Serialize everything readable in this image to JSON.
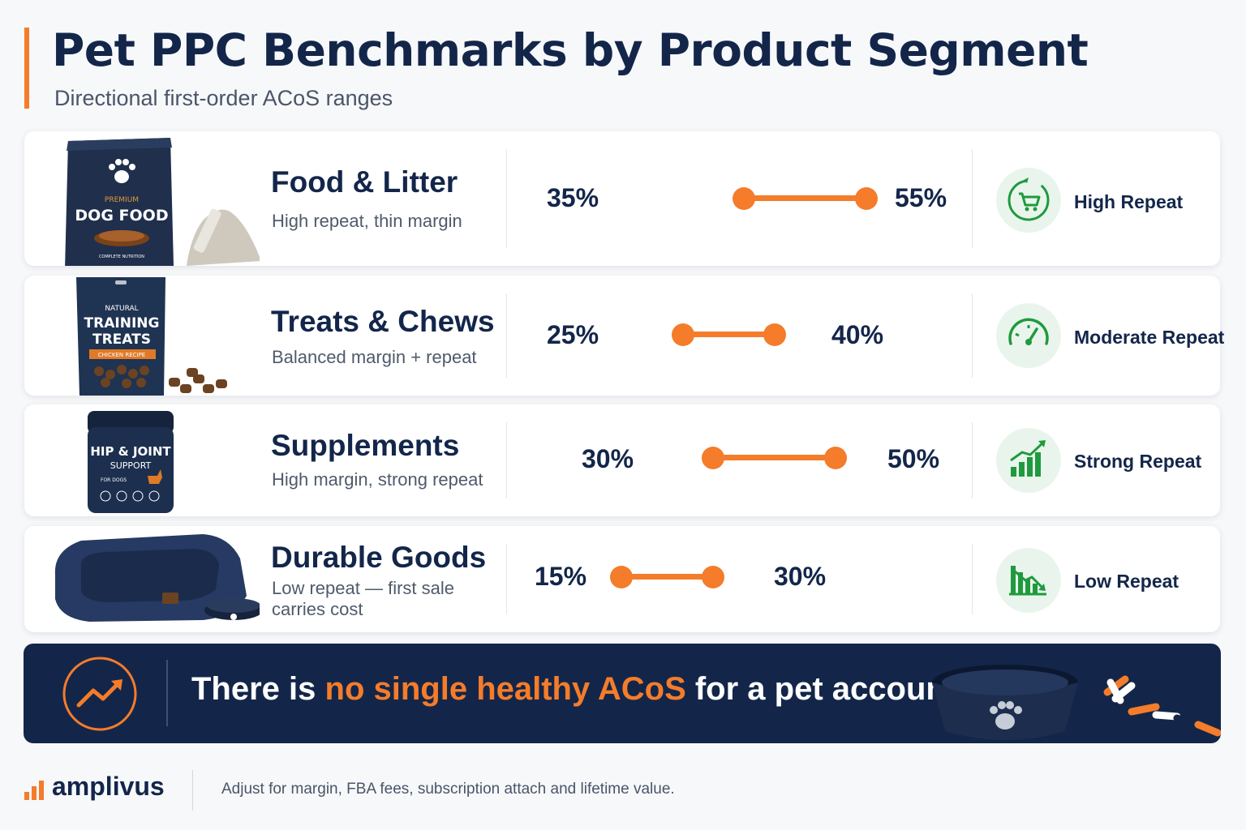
{
  "header": {
    "title": "Pet PPC Benchmarks by Product Segment",
    "subtitle": "Directional first-order ACoS ranges"
  },
  "colors": {
    "navy": "#13264a",
    "orange": "#f47c2a",
    "green": "#1f9a3e",
    "icon_bg": "#e9f5ec"
  },
  "chart_data": {
    "type": "range",
    "unit": "%",
    "categories": [
      "Food & Litter",
      "Treats & Chews",
      "Supplements",
      "Durable Goods"
    ],
    "segments": [
      {
        "name": "Food & Litter",
        "description": "High repeat, thin margin",
        "low": 35,
        "high": 55,
        "low_label": "35%",
        "high_label": "55%",
        "repeat": "High Repeat",
        "icon": "cart-refresh-icon",
        "image": "dog-food-bag",
        "image_text": {
          "line1": "PREMIUM",
          "line2": "DOG FOOD",
          "line3": "COMPLETE NUTRITION"
        }
      },
      {
        "name": "Treats & Chews",
        "description": "Balanced margin + repeat",
        "low": 25,
        "high": 40,
        "low_label": "25%",
        "high_label": "40%",
        "repeat": "Moderate Repeat",
        "icon": "gauge-icon",
        "image": "treats-pouch",
        "image_text": {
          "line1": "NATURAL",
          "line2": "TRAINING",
          "line3": "TREATS",
          "line4": "CHICKEN RECIPE"
        }
      },
      {
        "name": "Supplements",
        "description": "High margin, strong repeat",
        "low": 30,
        "high": 50,
        "low_label": "30%",
        "high_label": "50%",
        "repeat": "Strong Repeat",
        "icon": "bars-up-icon",
        "image": "supplement-jar",
        "image_text": {
          "line1": "HIP & JOINT",
          "line2": "SUPPORT",
          "line3": "FOR DOGS"
        }
      },
      {
        "name": "Durable Goods",
        "description": "Low repeat — first sale carries cost",
        "low": 15,
        "high": 30,
        "low_label": "15%",
        "high_label": "30%",
        "repeat": "Low Repeat",
        "icon": "bars-down-icon",
        "image": "dog-bed-and-bowl"
      }
    ]
  },
  "banner": {
    "prefix": "There is ",
    "highlight": "no single healthy ACoS",
    "suffix": " for a pet account.",
    "icon": "trend-up-icon"
  },
  "footer": {
    "brand": "amplivus",
    "note": "Adjust for margin, FBA fees, subscription attach and lifetime value."
  }
}
